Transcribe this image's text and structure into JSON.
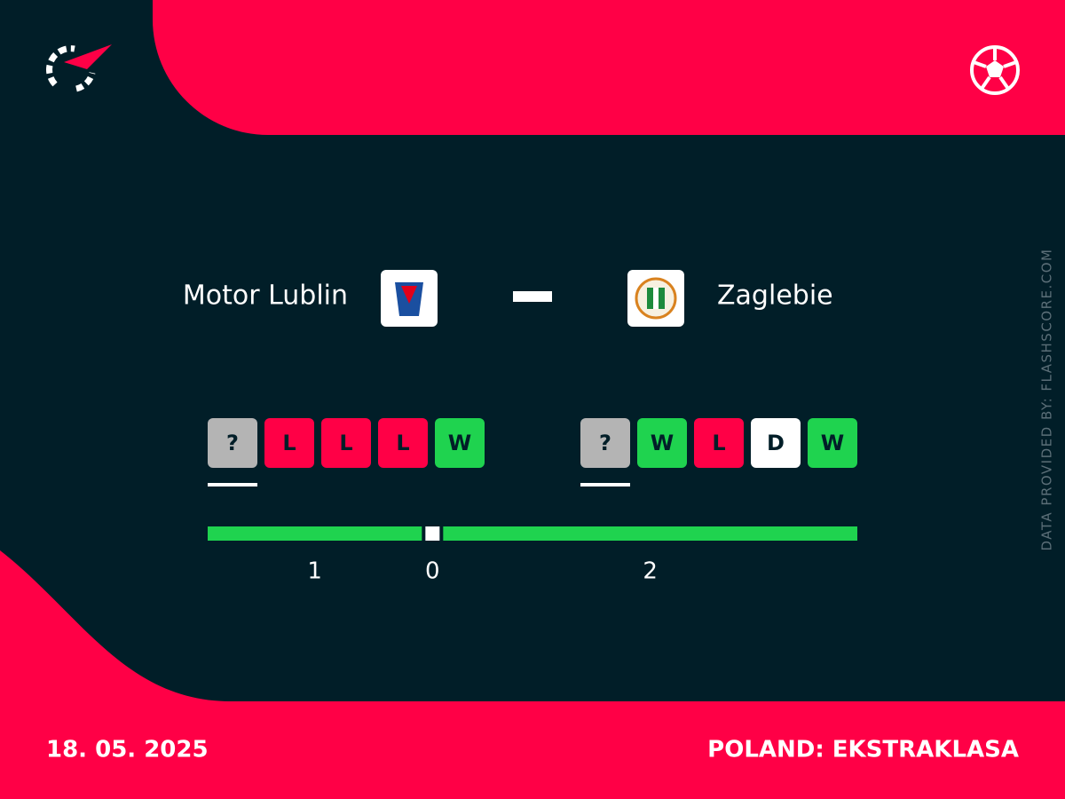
{
  "match": {
    "home_team": "Motor Lublin",
    "away_team": "Zaglebie",
    "date": "18. 05. 2025",
    "competition": "POLAND: EKSTRAKLASA"
  },
  "source_credit": "DATA PROVIDED BY: FLASHSCORE.COM",
  "form": {
    "home": [
      {
        "result": "?",
        "color": "#b4b4b4"
      },
      {
        "result": "L",
        "color": "#ff0046"
      },
      {
        "result": "L",
        "color": "#ff0046"
      },
      {
        "result": "L",
        "color": "#ff0046"
      },
      {
        "result": "W",
        "color": "#1fd34f"
      }
    ],
    "away": [
      {
        "result": "?",
        "color": "#b4b4b4"
      },
      {
        "result": "W",
        "color": "#1fd34f"
      },
      {
        "result": "L",
        "color": "#ff0046"
      },
      {
        "result": "D",
        "color": "#ffffff"
      },
      {
        "result": "W",
        "color": "#1fd34f"
      }
    ]
  },
  "head_to_head": {
    "home_wins": {
      "count": 1,
      "color": "#1fd34f"
    },
    "draws": {
      "count": 0,
      "color": "#ffffff"
    },
    "away_wins": {
      "count": 2,
      "color": "#1fd34f"
    }
  }
}
